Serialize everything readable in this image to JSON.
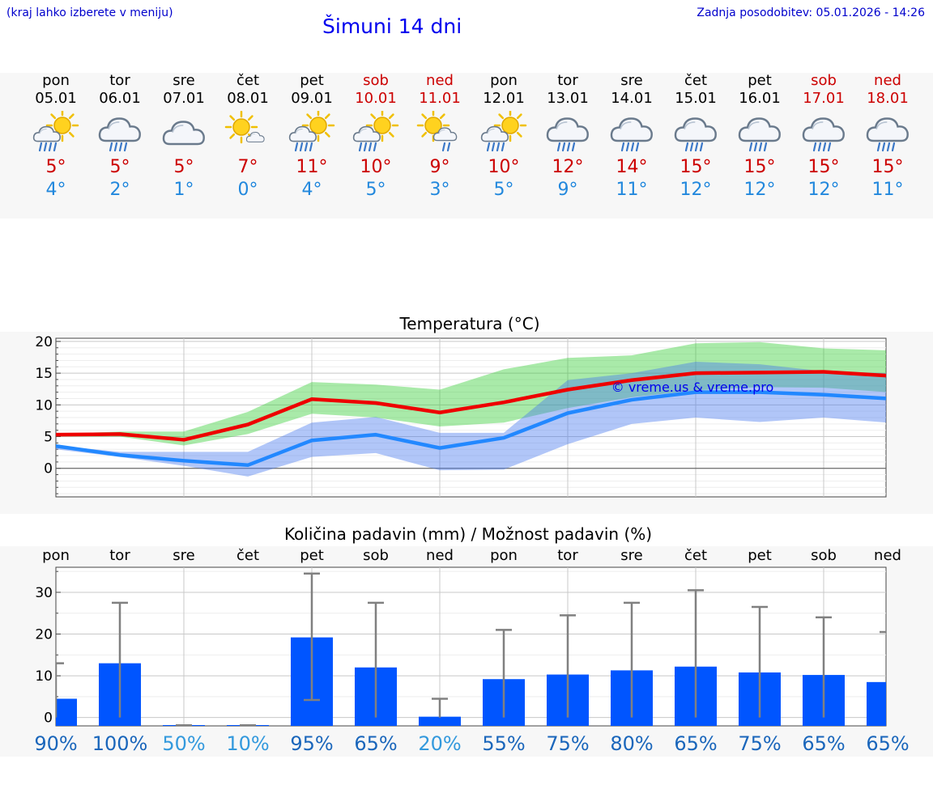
{
  "header": {
    "hint": "(kraj lahko izberete v meniju)",
    "title": "Šimuni 14 dni",
    "updated": "Zadnja posodobitev: 05.01.2026 - 14:26"
  },
  "colors": {
    "max": "#cc0000",
    "min": "#2288dd",
    "weekend": "#cc0000",
    "bar": "#0055ff"
  },
  "days": [
    {
      "name": "pon",
      "date": "05.01",
      "weekend": false,
      "icon": "sun-cloud-rain-icon",
      "tmax": "5°",
      "tmin": "4°"
    },
    {
      "name": "tor",
      "date": "06.01",
      "weekend": false,
      "icon": "cloud-rain-icon",
      "tmax": "5°",
      "tmin": "2°"
    },
    {
      "name": "sre",
      "date": "07.01",
      "weekend": false,
      "icon": "cloud-icon",
      "tmax": "5°",
      "tmin": "1°"
    },
    {
      "name": "čet",
      "date": "08.01",
      "weekend": false,
      "icon": "sun-small-cloud-icon",
      "tmax": "7°",
      "tmin": "0°"
    },
    {
      "name": "pet",
      "date": "09.01",
      "weekend": false,
      "icon": "sun-cloud-rain-icon",
      "tmax": "11°",
      "tmin": "4°"
    },
    {
      "name": "sob",
      "date": "10.01",
      "weekend": true,
      "icon": "sun-cloud-rain-icon",
      "tmax": "10°",
      "tmin": "5°"
    },
    {
      "name": "ned",
      "date": "11.01",
      "weekend": true,
      "icon": "sun-cloud-light-rain-icon",
      "tmax": "9°",
      "tmin": "3°"
    },
    {
      "name": "pon",
      "date": "12.01",
      "weekend": false,
      "icon": "sun-cloud-rain-icon",
      "tmax": "10°",
      "tmin": "5°"
    },
    {
      "name": "tor",
      "date": "13.01",
      "weekend": false,
      "icon": "cloud-rain-icon",
      "tmax": "12°",
      "tmin": "9°"
    },
    {
      "name": "sre",
      "date": "14.01",
      "weekend": false,
      "icon": "cloud-rain-icon",
      "tmax": "14°",
      "tmin": "11°"
    },
    {
      "name": "čet",
      "date": "15.01",
      "weekend": false,
      "icon": "cloud-rain-icon",
      "tmax": "15°",
      "tmin": "12°"
    },
    {
      "name": "pet",
      "date": "16.01",
      "weekend": false,
      "icon": "cloud-rain-icon",
      "tmax": "15°",
      "tmin": "12°"
    },
    {
      "name": "sob",
      "date": "17.01",
      "weekend": true,
      "icon": "cloud-rain-icon",
      "tmax": "15°",
      "tmin": "12°"
    },
    {
      "name": "ned",
      "date": "18.01",
      "weekend": true,
      "icon": "cloud-rain-icon",
      "tmax": "15°",
      "tmin": "11°"
    }
  ],
  "chart_data": [
    {
      "type": "line",
      "title": "Temperatura (°C)",
      "watermark": "© vreme.us & vreme.pro",
      "ylim": [
        -4.5,
        20.5
      ],
      "yticks": [
        "20",
        "15",
        "10",
        "5",
        "0"
      ],
      "x": [
        0,
        1,
        2,
        3,
        4,
        5,
        6,
        7,
        8,
        9,
        10,
        11,
        12,
        13
      ],
      "series": [
        {
          "name": "max",
          "color": "#ee0000",
          "values": [
            5.3,
            5.4,
            4.5,
            6.9,
            10.9,
            10.3,
            8.8,
            10.4,
            12.4,
            13.9,
            15.0,
            15.1,
            15.2,
            14.6
          ]
        },
        {
          "name": "min",
          "color": "#2288ff",
          "values": [
            3.5,
            2.1,
            1.2,
            0.5,
            4.4,
            5.3,
            3.2,
            4.8,
            8.7,
            10.8,
            12.0,
            12.0,
            11.6,
            11.0
          ]
        }
      ],
      "bands": [
        {
          "name": "max-range",
          "color": "#33cc33",
          "upper": [
            5.4,
            5.8,
            5.8,
            8.9,
            13.6,
            13.2,
            12.4,
            15.6,
            17.4,
            17.8,
            19.7,
            19.9,
            18.9,
            18.6
          ],
          "lower": [
            5.0,
            5.0,
            3.6,
            5.4,
            8.6,
            8.0,
            6.6,
            7.2,
            9.5,
            11.2,
            12.3,
            12.8,
            12.7,
            12.0
          ]
        },
        {
          "name": "min-range",
          "color": "#4477ee",
          "upper": [
            3.6,
            2.6,
            2.6,
            2.6,
            7.2,
            8.1,
            5.6,
            5.6,
            13.9,
            15.0,
            16.8,
            16.4,
            15.3,
            15.0
          ],
          "lower": [
            3.0,
            1.8,
            0.4,
            -1.3,
            1.8,
            2.4,
            -0.3,
            -0.2,
            3.8,
            7.0,
            8.0,
            7.3,
            8.0,
            7.2
          ]
        }
      ]
    },
    {
      "type": "bar",
      "title": "Količina padavin (mm) / Možnost padavin (%)",
      "categories": [
        "pon",
        "tor",
        "sre",
        "čet",
        "pet",
        "sob",
        "ned",
        "pon",
        "tor",
        "sre",
        "čet",
        "pet",
        "sob",
        "ned"
      ],
      "ylim": [
        -2,
        36
      ],
      "yticks": [
        "30",
        "20",
        "10",
        "0"
      ],
      "values": [
        4.5,
        13,
        0,
        0,
        19.2,
        12,
        0.2,
        9.2,
        10.3,
        11.3,
        12.2,
        10.8,
        10.2,
        8.5
      ],
      "error_upper": [
        13,
        27.5,
        0,
        0,
        34.5,
        27.5,
        4.5,
        21,
        24.5,
        27.5,
        30.5,
        26.5,
        24,
        20.5
      ],
      "error_lower": [
        0,
        0,
        0,
        0,
        4.2,
        0,
        0,
        0,
        0,
        0,
        0,
        0,
        0,
        0
      ],
      "probability": [
        "90%",
        "100%",
        "50%",
        "10%",
        "95%",
        "65%",
        "20%",
        "55%",
        "75%",
        "80%",
        "65%",
        "75%",
        "65%",
        "65%"
      ],
      "probability_values": [
        90,
        100,
        50,
        10,
        95,
        65,
        20,
        55,
        75,
        80,
        65,
        75,
        65,
        65
      ]
    }
  ]
}
